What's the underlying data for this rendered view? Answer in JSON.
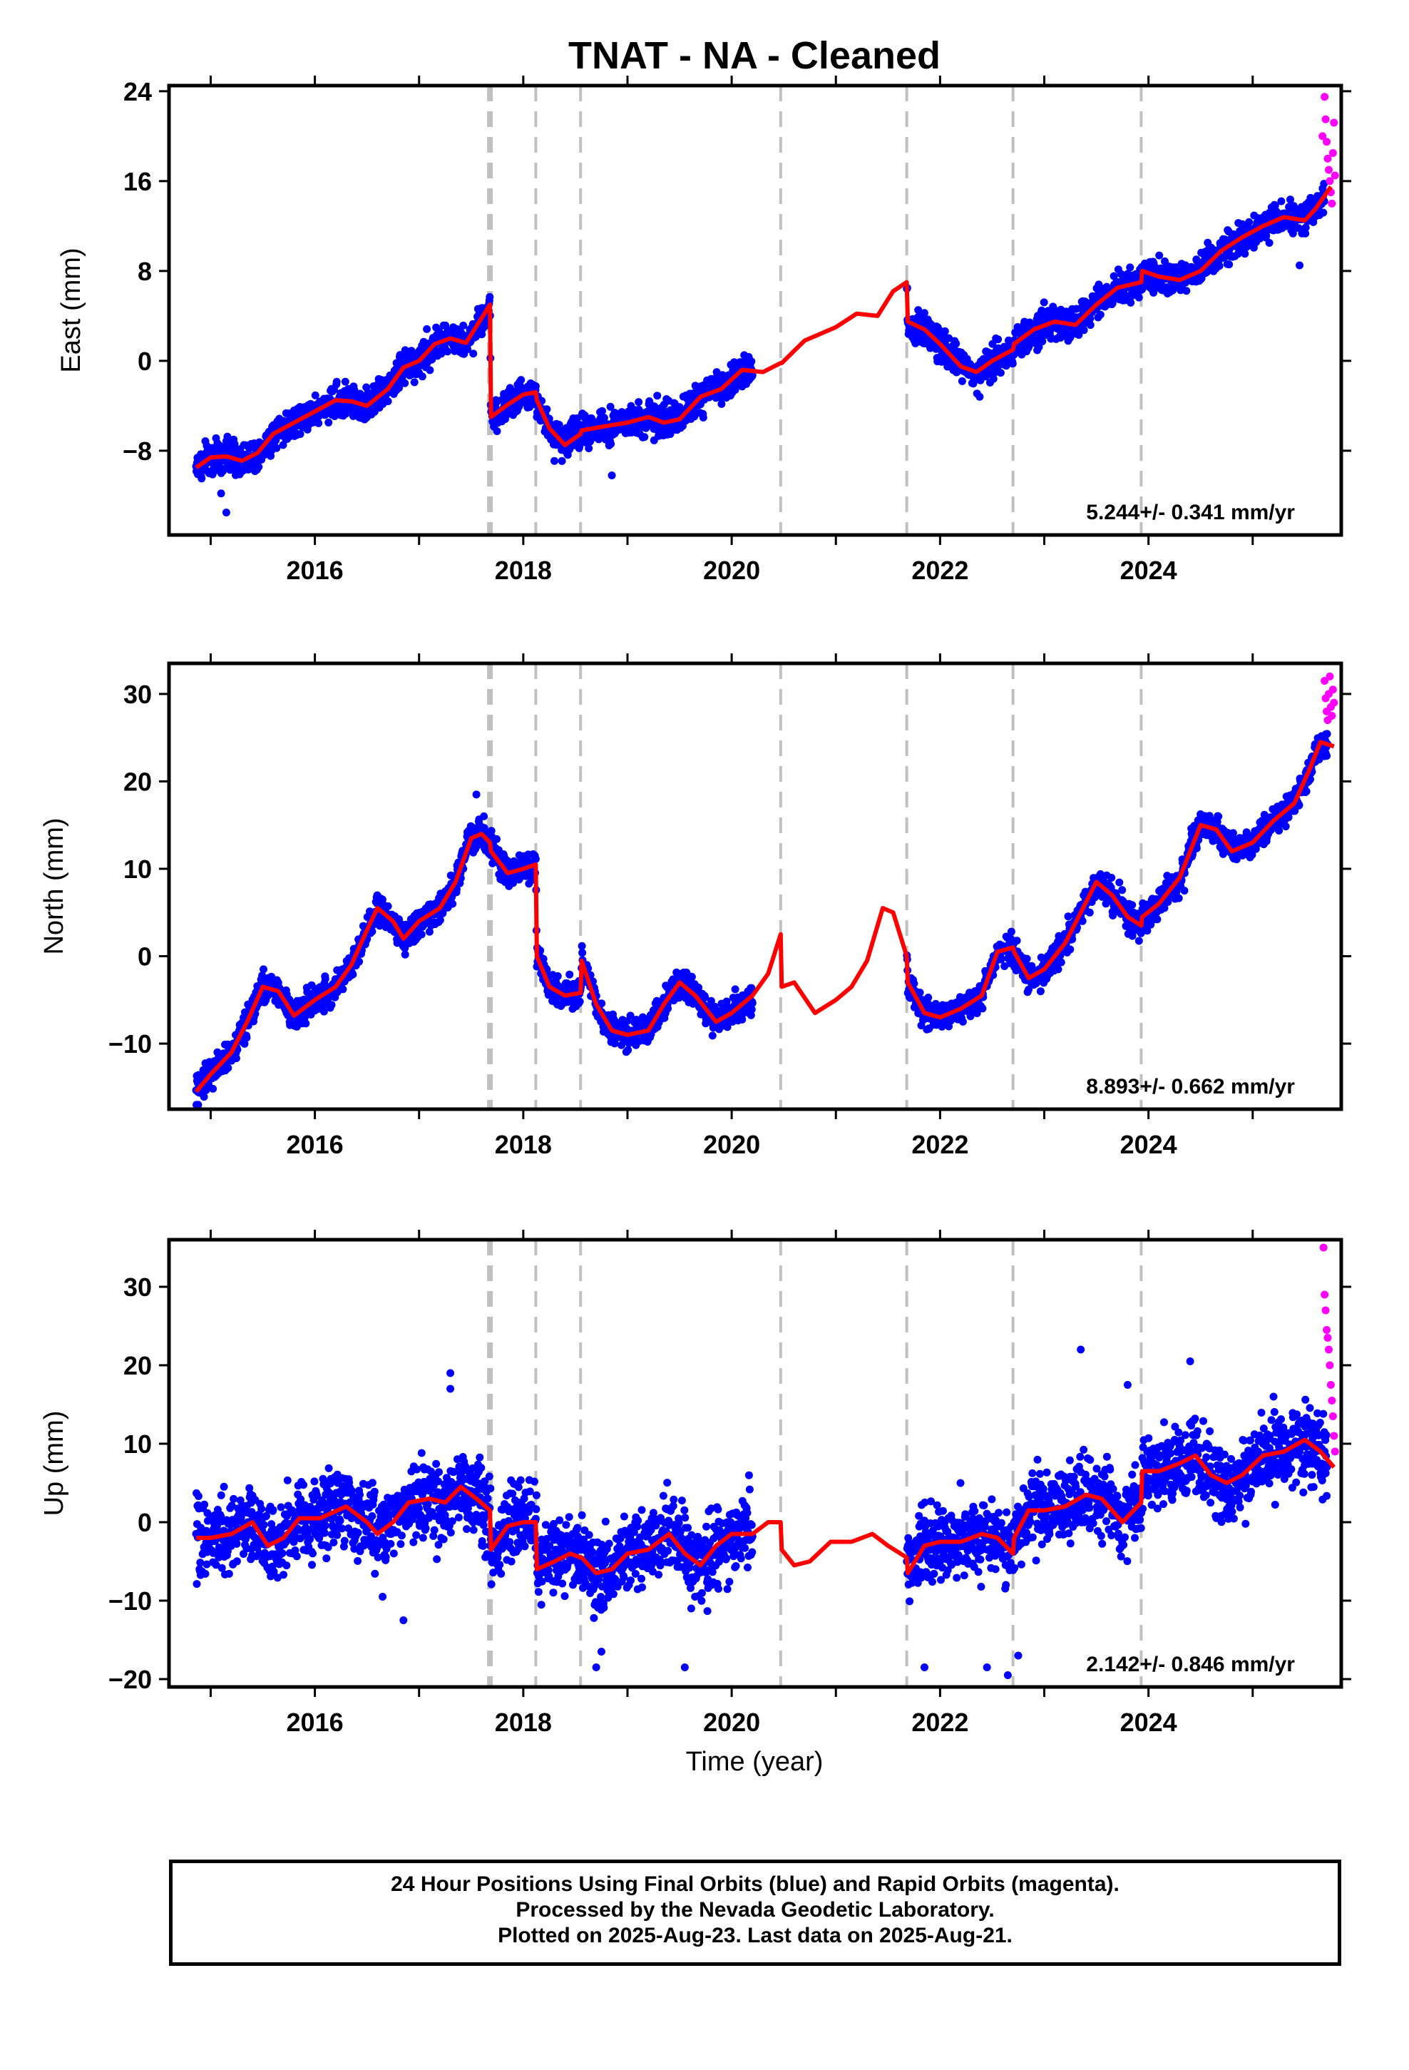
{
  "chart_data": {
    "type": "scatter",
    "title": "TNAT  - NA - Cleaned",
    "xlabel": "Time (year)",
    "x_ticks": [
      2016,
      2018,
      2020,
      2022,
      2024
    ],
    "xlim": [
      2014.6,
      2025.85
    ],
    "events": {
      "bold_dashed": [
        2017.68
      ],
      "dashed": [
        2018.12,
        2018.55,
        2020.47,
        2021.68,
        2022.7,
        2023.93
      ]
    },
    "series_styles": {
      "final_orbits": "#0000ff",
      "rapid_orbits": "#ff00ff",
      "model": "#ff0000",
      "event_line": "#c0c0c0"
    },
    "panels": [
      {
        "id": "east",
        "ylabel": "East (mm)",
        "ylim": [
          -15.5,
          24.5
        ],
        "y_ticks": [
          -8,
          0,
          8,
          16,
          24
        ],
        "rate": "5.244+/- 0.341 mm/yr",
        "model": [
          [
            2014.86,
            -9.5
          ],
          [
            2015.0,
            -8.6
          ],
          [
            2015.15,
            -8.5
          ],
          [
            2015.3,
            -8.9
          ],
          [
            2015.45,
            -8.2
          ],
          [
            2015.6,
            -6.5
          ],
          [
            2015.8,
            -5.5
          ],
          [
            2016.0,
            -4.5
          ],
          [
            2016.2,
            -3.5
          ],
          [
            2016.35,
            -3.6
          ],
          [
            2016.5,
            -4.0
          ],
          [
            2016.7,
            -2.5
          ],
          [
            2016.85,
            -0.6
          ],
          [
            2017.0,
            0.0
          ],
          [
            2017.15,
            1.5
          ],
          [
            2017.3,
            2.0
          ],
          [
            2017.45,
            1.6
          ],
          [
            2017.6,
            3.8
          ],
          [
            2017.68,
            5.0
          ],
          [
            2017.69,
            -5.0
          ],
          [
            2017.85,
            -3.9
          ],
          [
            2018.0,
            -3.0
          ],
          [
            2018.12,
            -2.8
          ],
          [
            2018.13,
            -3.5
          ],
          [
            2018.25,
            -6.0
          ],
          [
            2018.4,
            -7.5
          ],
          [
            2018.55,
            -6.5
          ],
          [
            2018.56,
            -6.2
          ],
          [
            2018.8,
            -5.8
          ],
          [
            2019.0,
            -5.5
          ],
          [
            2019.2,
            -5.0
          ],
          [
            2019.35,
            -5.5
          ],
          [
            2019.5,
            -5.2
          ],
          [
            2019.7,
            -3.2
          ],
          [
            2019.9,
            -2.5
          ],
          [
            2020.1,
            -0.8
          ],
          [
            2020.3,
            -1.0
          ],
          [
            2020.47,
            -0.2
          ],
          [
            2020.48,
            -0.2
          ],
          [
            2020.7,
            1.8
          ],
          [
            2021.0,
            3.0
          ],
          [
            2021.2,
            4.2
          ],
          [
            2021.4,
            4.0
          ],
          [
            2021.55,
            6.2
          ],
          [
            2021.68,
            7.0
          ],
          [
            2021.69,
            3.5
          ],
          [
            2021.85,
            2.8
          ],
          [
            2022.0,
            1.5
          ],
          [
            2022.2,
            -0.5
          ],
          [
            2022.35,
            -1.0
          ],
          [
            2022.5,
            0.0
          ],
          [
            2022.7,
            1.0
          ],
          [
            2022.71,
            1.5
          ],
          [
            2022.9,
            2.8
          ],
          [
            2023.1,
            3.5
          ],
          [
            2023.3,
            3.2
          ],
          [
            2023.5,
            5.0
          ],
          [
            2023.7,
            6.5
          ],
          [
            2023.93,
            7.0
          ],
          [
            2023.94,
            8.0
          ],
          [
            2024.1,
            7.5
          ],
          [
            2024.3,
            7.2
          ],
          [
            2024.5,
            8.0
          ],
          [
            2024.7,
            9.8
          ],
          [
            2024.9,
            11.0
          ],
          [
            2025.1,
            12.0
          ],
          [
            2025.3,
            12.8
          ],
          [
            2025.5,
            12.5
          ],
          [
            2025.6,
            13.5
          ],
          [
            2025.75,
            15.5
          ]
        ],
        "spread": 1.2,
        "outliers": [
          [
            2015.15,
            -13.5
          ],
          [
            2015.1,
            -11.8
          ],
          [
            2018.85,
            -10.2
          ],
          [
            2022.38,
            -3.2
          ],
          [
            2025.45,
            8.5
          ]
        ],
        "rapid": [
          [
            2025.67,
            20.0
          ],
          [
            2025.69,
            23.5
          ],
          [
            2025.7,
            21.5
          ],
          [
            2025.71,
            19.5
          ],
          [
            2025.72,
            18.0
          ],
          [
            2025.73,
            17.0
          ],
          [
            2025.74,
            16.0
          ],
          [
            2025.75,
            15.0
          ],
          [
            2025.76,
            14.0
          ],
          [
            2025.77,
            18.5
          ],
          [
            2025.78,
            21.2
          ],
          [
            2025.79,
            16.5
          ]
        ]
      },
      {
        "id": "north",
        "ylabel": "North (mm)",
        "ylim": [
          -17.5,
          33.5
        ],
        "y_ticks": [
          -10,
          0,
          10,
          20,
          30
        ],
        "rate": "8.893+/- 0.662 mm/yr",
        "model": [
          [
            2014.86,
            -15.5
          ],
          [
            2015.0,
            -13.5
          ],
          [
            2015.2,
            -11.0
          ],
          [
            2015.35,
            -7.5
          ],
          [
            2015.5,
            -3.5
          ],
          [
            2015.65,
            -4.0
          ],
          [
            2015.8,
            -6.8
          ],
          [
            2016.0,
            -5.0
          ],
          [
            2016.2,
            -3.5
          ],
          [
            2016.35,
            -1.0
          ],
          [
            2016.5,
            3.0
          ],
          [
            2016.6,
            5.5
          ],
          [
            2016.75,
            4.0
          ],
          [
            2016.85,
            2.0
          ],
          [
            2017.0,
            4.0
          ],
          [
            2017.2,
            5.5
          ],
          [
            2017.35,
            8.5
          ],
          [
            2017.5,
            13.5
          ],
          [
            2017.6,
            14.0
          ],
          [
            2017.68,
            13.0
          ],
          [
            2017.69,
            12.0
          ],
          [
            2017.85,
            9.5
          ],
          [
            2018.0,
            10.0
          ],
          [
            2018.12,
            10.5
          ],
          [
            2018.13,
            0.0
          ],
          [
            2018.25,
            -3.5
          ],
          [
            2018.4,
            -4.5
          ],
          [
            2018.55,
            -4.2
          ],
          [
            2018.56,
            -0.5
          ],
          [
            2018.7,
            -5.5
          ],
          [
            2018.85,
            -8.5
          ],
          [
            2019.0,
            -9.0
          ],
          [
            2019.2,
            -8.5
          ],
          [
            2019.35,
            -5.5
          ],
          [
            2019.5,
            -3.0
          ],
          [
            2019.65,
            -4.5
          ],
          [
            2019.85,
            -7.5
          ],
          [
            2020.0,
            -6.5
          ],
          [
            2020.2,
            -4.5
          ],
          [
            2020.35,
            -2.0
          ],
          [
            2020.47,
            2.5
          ],
          [
            2020.48,
            -3.5
          ],
          [
            2020.6,
            -3.0
          ],
          [
            2020.8,
            -6.5
          ],
          [
            2021.0,
            -5.0
          ],
          [
            2021.15,
            -3.5
          ],
          [
            2021.3,
            -0.5
          ],
          [
            2021.45,
            5.5
          ],
          [
            2021.55,
            5.0
          ],
          [
            2021.68,
            0.0
          ],
          [
            2021.69,
            -3.0
          ],
          [
            2021.85,
            -6.5
          ],
          [
            2022.0,
            -7.0
          ],
          [
            2022.2,
            -6.0
          ],
          [
            2022.4,
            -4.5
          ],
          [
            2022.55,
            0.5
          ],
          [
            2022.7,
            1.0
          ],
          [
            2022.71,
            0.5
          ],
          [
            2022.85,
            -2.5
          ],
          [
            2023.0,
            -1.5
          ],
          [
            2023.2,
            1.5
          ],
          [
            2023.35,
            5.0
          ],
          [
            2023.5,
            8.5
          ],
          [
            2023.65,
            7.0
          ],
          [
            2023.8,
            4.5
          ],
          [
            2023.93,
            3.5
          ],
          [
            2023.94,
            4.5
          ],
          [
            2024.1,
            6.0
          ],
          [
            2024.3,
            9.0
          ],
          [
            2024.5,
            15.0
          ],
          [
            2024.65,
            14.5
          ],
          [
            2024.8,
            12.0
          ],
          [
            2025.0,
            13.0
          ],
          [
            2025.2,
            15.5
          ],
          [
            2025.4,
            17.5
          ],
          [
            2025.55,
            21.5
          ],
          [
            2025.65,
            24.5
          ],
          [
            2025.78,
            24.0
          ]
        ],
        "spread": 1.4,
        "outliers": [
          [
            2014.88,
            -17.0
          ],
          [
            2017.55,
            18.5
          ]
        ],
        "rapid": [
          [
            2025.69,
            31.5
          ],
          [
            2025.7,
            29.5
          ],
          [
            2025.71,
            28.0
          ],
          [
            2025.72,
            27.0
          ],
          [
            2025.73,
            30.0
          ],
          [
            2025.74,
            32.0
          ],
          [
            2025.75,
            28.5
          ],
          [
            2025.76,
            27.5
          ],
          [
            2025.77,
            30.5
          ],
          [
            2025.78,
            29.0
          ]
        ]
      },
      {
        "id": "up",
        "ylabel": "Up (mm)",
        "ylim": [
          -21.0,
          36.0
        ],
        "y_ticks": [
          -20,
          -10,
          0,
          10,
          20,
          30
        ],
        "rate": "2.142+/- 0.846 mm/yr",
        "model": [
          [
            2014.86,
            -2.0
          ],
          [
            2015.0,
            -2.0
          ],
          [
            2015.2,
            -1.5
          ],
          [
            2015.4,
            0.0
          ],
          [
            2015.55,
            -3.0
          ],
          [
            2015.7,
            -2.0
          ],
          [
            2015.85,
            0.5
          ],
          [
            2016.05,
            0.5
          ],
          [
            2016.3,
            2.0
          ],
          [
            2016.5,
            0.0
          ],
          [
            2016.6,
            -1.5
          ],
          [
            2016.75,
            0.0
          ],
          [
            2016.9,
            2.5
          ],
          [
            2017.1,
            3.0
          ],
          [
            2017.25,
            2.5
          ],
          [
            2017.4,
            4.5
          ],
          [
            2017.55,
            3.0
          ],
          [
            2017.68,
            1.5
          ],
          [
            2017.69,
            -3.5
          ],
          [
            2017.85,
            -0.5
          ],
          [
            2018.0,
            0.0
          ],
          [
            2018.12,
            0.0
          ],
          [
            2018.13,
            -6.0
          ],
          [
            2018.3,
            -5.0
          ],
          [
            2018.45,
            -4.0
          ],
          [
            2018.55,
            -4.5
          ],
          [
            2018.56,
            -4.5
          ],
          [
            2018.7,
            -6.5
          ],
          [
            2018.85,
            -6.0
          ],
          [
            2019.0,
            -4.0
          ],
          [
            2019.2,
            -3.5
          ],
          [
            2019.4,
            -1.5
          ],
          [
            2019.55,
            -4.0
          ],
          [
            2019.7,
            -5.5
          ],
          [
            2019.85,
            -3.0
          ],
          [
            2020.0,
            -1.5
          ],
          [
            2020.2,
            -1.5
          ],
          [
            2020.35,
            0.0
          ],
          [
            2020.47,
            0.0
          ],
          [
            2020.48,
            -3.5
          ],
          [
            2020.6,
            -5.5
          ],
          [
            2020.75,
            -5.0
          ],
          [
            2020.95,
            -2.5
          ],
          [
            2021.15,
            -2.5
          ],
          [
            2021.35,
            -1.5
          ],
          [
            2021.5,
            -3.0
          ],
          [
            2021.68,
            -4.5
          ],
          [
            2021.69,
            -6.5
          ],
          [
            2021.85,
            -3.0
          ],
          [
            2022.0,
            -2.5
          ],
          [
            2022.2,
            -2.5
          ],
          [
            2022.4,
            -1.5
          ],
          [
            2022.55,
            -2.0
          ],
          [
            2022.7,
            -4.0
          ],
          [
            2022.71,
            -2.0
          ],
          [
            2022.85,
            1.5
          ],
          [
            2023.0,
            1.5
          ],
          [
            2023.2,
            2.0
          ],
          [
            2023.4,
            3.5
          ],
          [
            2023.55,
            3.0
          ],
          [
            2023.75,
            0.0
          ],
          [
            2023.93,
            2.5
          ],
          [
            2023.94,
            6.5
          ],
          [
            2024.1,
            6.5
          ],
          [
            2024.3,
            7.5
          ],
          [
            2024.45,
            8.5
          ],
          [
            2024.6,
            6.0
          ],
          [
            2024.75,
            5.0
          ],
          [
            2024.9,
            6.0
          ],
          [
            2025.1,
            8.5
          ],
          [
            2025.3,
            9.0
          ],
          [
            2025.5,
            10.5
          ],
          [
            2025.65,
            9.0
          ],
          [
            2025.78,
            7.0
          ]
        ],
        "spread": 4.0,
        "outliers": [
          [
            2017.3,
            19.0
          ],
          [
            2017.3,
            17.0
          ],
          [
            2016.85,
            -12.5
          ],
          [
            2016.65,
            -9.5
          ],
          [
            2018.7,
            -18.5
          ],
          [
            2018.75,
            -16.5
          ],
          [
            2019.55,
            -18.5
          ],
          [
            2021.85,
            -18.5
          ],
          [
            2022.45,
            -18.5
          ],
          [
            2022.65,
            -19.5
          ],
          [
            2022.75,
            -17.0
          ],
          [
            2023.35,
            22.0
          ],
          [
            2023.8,
            17.5
          ],
          [
            2024.4,
            20.5
          ],
          [
            2025.2,
            16.0
          ]
        ],
        "rapid": [
          [
            2025.68,
            35.0
          ],
          [
            2025.69,
            29.0
          ],
          [
            2025.7,
            27.0
          ],
          [
            2025.71,
            24.5
          ],
          [
            2025.72,
            23.5
          ],
          [
            2025.73,
            22.0
          ],
          [
            2025.74,
            20.0
          ],
          [
            2025.75,
            17.5
          ],
          [
            2025.76,
            15.5
          ],
          [
            2025.77,
            13.5
          ],
          [
            2025.78,
            11.0
          ],
          [
            2025.79,
            9.0
          ]
        ]
      }
    ],
    "gap": [
      2020.2,
      2021.68
    ]
  },
  "footer": {
    "line1": "24 Hour Positions Using Final Orbits (blue) and Rapid Orbits (magenta).",
    "line2": "Processed by the Nevada Geodetic Laboratory.",
    "line3": "Plotted on 2025-Aug-23. Last data on 2025-Aug-21."
  }
}
